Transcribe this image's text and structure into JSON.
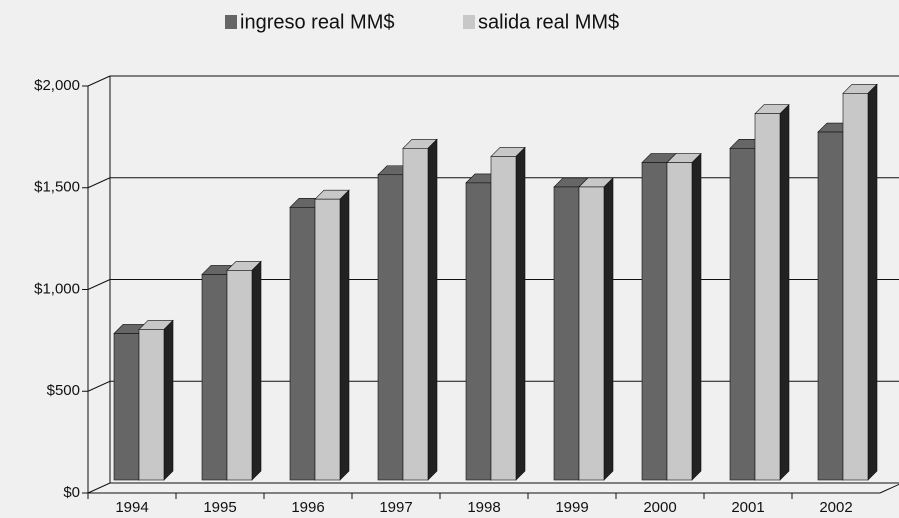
{
  "chart_data": {
    "type": "bar3d",
    "categories": [
      "1994",
      "1995",
      "1996",
      "1997",
      "1998",
      "1999",
      "2000",
      "2001",
      "2002"
    ],
    "series": [
      {
        "name": "ingreso real MM$",
        "color": "#666666",
        "values": [
          720,
          1010,
          1340,
          1500,
          1460,
          1440,
          1560,
          1630,
          1710
        ]
      },
      {
        "name": "salida real MM$",
        "color": "#c8c8c8",
        "values": [
          740,
          1030,
          1380,
          1630,
          1590,
          1440,
          1560,
          1800,
          1900
        ]
      }
    ],
    "ylim": [
      0,
      2000
    ],
    "yticks": [
      {
        "value": 0,
        "label": "$0"
      },
      {
        "value": 500,
        "label": "$500"
      },
      {
        "value": 1000,
        "label": "$1,000"
      },
      {
        "value": 1500,
        "label": "$1,500"
      },
      {
        "value": 2000,
        "label": "$2,000"
      }
    ],
    "grid": true,
    "legend": "top"
  }
}
